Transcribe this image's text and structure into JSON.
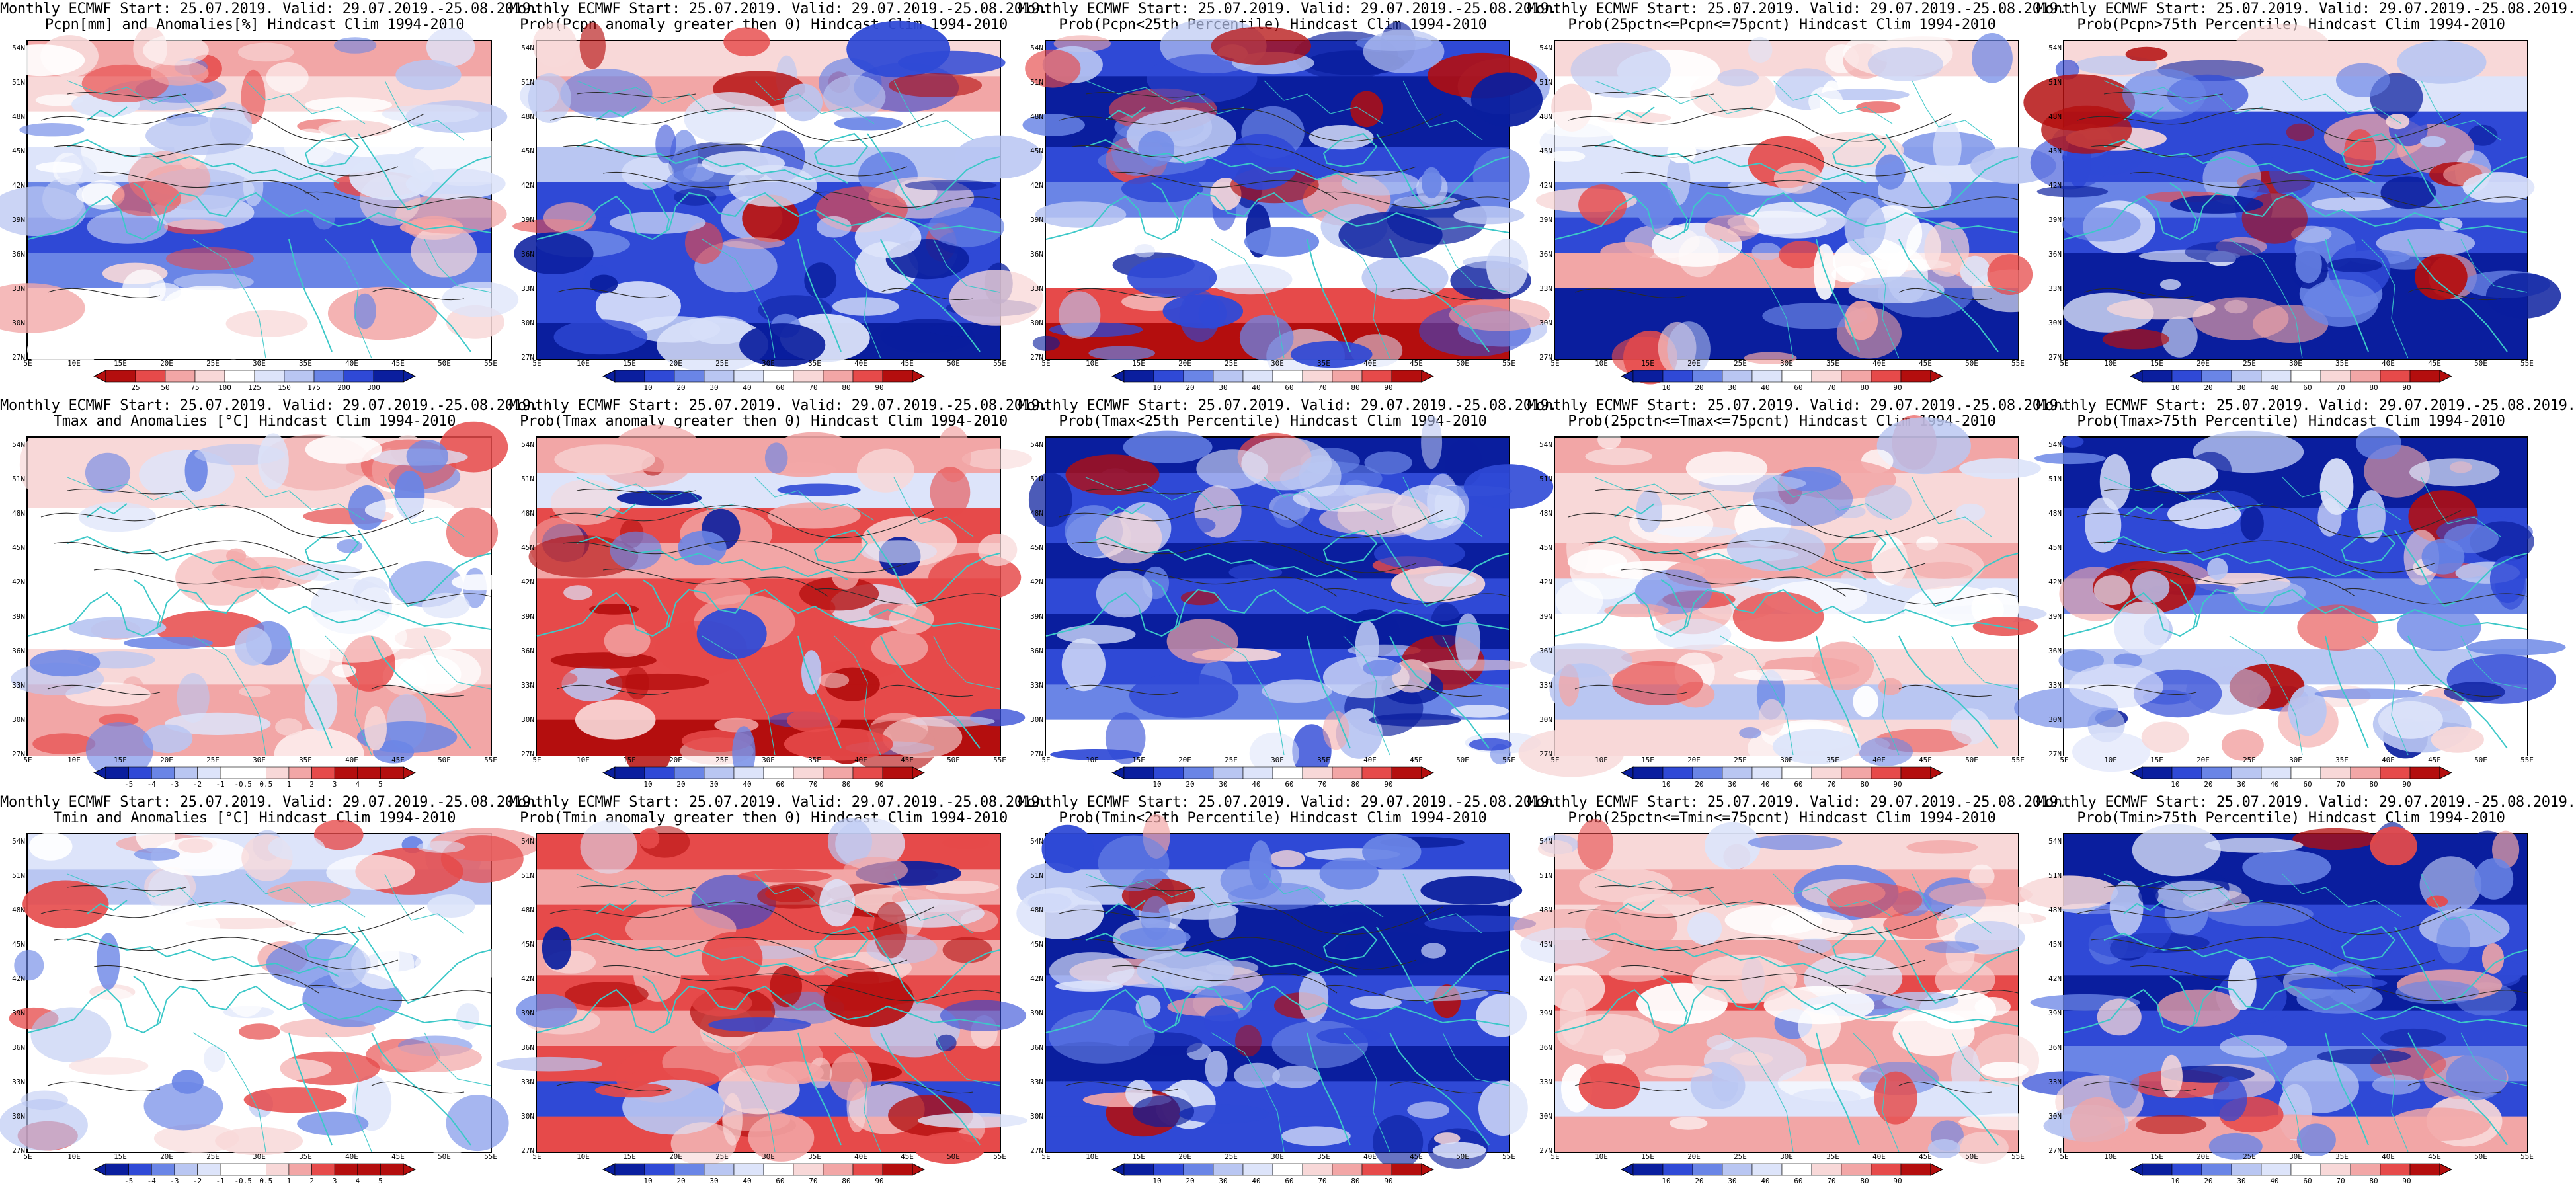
{
  "colors": {
    "deep_blue": "#0a1e9e",
    "blue": "#2f49d6",
    "mid_blue": "#6a85e6",
    "light_blue": "#b9c6f2",
    "pale_blue": "#dde4fa",
    "white": "#ffffff",
    "pale_red": "#f8d8d8",
    "light_red": "#f2a6a6",
    "red": "#e64a4a",
    "deep_red": "#b40e0e",
    "coast": "#3cc8c8",
    "contour": "#2a2a2a"
  },
  "lat_labels": [
    "54N",
    "51N",
    "48N",
    "45N",
    "42N",
    "39N",
    "36N",
    "33N",
    "30N",
    "27N"
  ],
  "lon_labels": [
    "5E",
    "10E",
    "15E",
    "20E",
    "25E",
    "30E",
    "35E",
    "40E",
    "45E",
    "50E",
    "55E"
  ],
  "scales": {
    "prcp_anom": [
      "25",
      "50",
      "75",
      "100",
      "125",
      "150",
      "175",
      "200",
      "300"
    ],
    "prob": [
      "10",
      "20",
      "30",
      "40",
      "60",
      "70",
      "80",
      "90"
    ],
    "temp_anom": [
      "-5",
      "-4",
      "-3",
      "-2",
      "-1",
      "-0.5",
      "0.5",
      "1",
      "2",
      "3",
      "4",
      "5"
    ]
  },
  "panels": [
    {
      "line1": "Monthly ECMWF Start: 25.07.2019. Valid: 29.07.2019.-25.08.2019.",
      "line2": "Pcpn[mm] and Anomalies[%] Hindcast Clim 1994-2010",
      "scale": "prcp_anom",
      "tone": "mix",
      "bands": [
        "light_red",
        "pale_red",
        "white",
        "pale_blue",
        "mid_blue",
        "blue",
        "mid_blue",
        "white",
        "white"
      ]
    },
    {
      "line1": "Monthly ECMWF Start: 25.07.2019. Valid: 29.07.2019.-25.08.2019.",
      "line2": "Prob(Pcpn anomaly greater then 0) Hindcast Clim 1994-2010",
      "scale": "prob",
      "tone": "blue",
      "bands": [
        "pale_red",
        "light_red",
        "white",
        "light_blue",
        "blue",
        "blue",
        "blue",
        "blue",
        "deep_blue"
      ]
    },
    {
      "line1": "Monthly ECMWF Start: 25.07.2019. Valid: 29.07.2019.-25.08.2019.",
      "line2": "Prob(Pcpn<25th Percentile) Hindcast Clim 1994-2010",
      "scale": "prob",
      "tone": "blue",
      "bands": [
        "blue",
        "deep_blue",
        "deep_blue",
        "blue",
        "mid_blue",
        "white",
        "white",
        "red",
        "deep_red"
      ]
    },
    {
      "line1": "Monthly ECMWF Start: 25.07.2019. Valid: 29.07.2019.-25.08.2019.",
      "line2": "Prob(25pctn<=Pcpn<=75pcnt) Hindcast Clim 1994-2010",
      "scale": "prob",
      "tone": "mix",
      "bands": [
        "pale_red",
        "white",
        "white",
        "pale_blue",
        "mid_blue",
        "blue",
        "light_red",
        "deep_blue",
        "deep_blue"
      ]
    },
    {
      "line1": "Monthly ECMWF Start: 25.07.2019. Valid: 29.07.2019.-25.08.2019.",
      "line2": "Prob(Pcpn>75th Percentile) Hindcast Clim 1994-2010",
      "scale": "prob",
      "tone": "blue",
      "bands": [
        "pale_red",
        "pale_blue",
        "blue",
        "blue",
        "mid_blue",
        "blue",
        "deep_blue",
        "deep_blue",
        "deep_blue"
      ]
    },
    {
      "line1": "Monthly ECMWF Start: 25.07.2019. Valid: 29.07.2019.-25.08.2019.",
      "line2": "Tmax and Anomalies [°C] Hindcast Clim 1994-2010",
      "scale": "temp_anom",
      "tone": "mix",
      "bands": [
        "pale_red",
        "pale_red",
        "white",
        "white",
        "white",
        "white",
        "pale_red",
        "light_red",
        "light_red"
      ]
    },
    {
      "line1": "Monthly ECMWF Start: 25.07.2019. Valid: 29.07.2019.-25.08.2019.",
      "line2": "Prob(Tmax anomaly greater then 0) Hindcast Clim 1994-2010",
      "scale": "prob",
      "tone": "red",
      "bands": [
        "light_red",
        "pale_blue",
        "red",
        "light_red",
        "red",
        "red",
        "red",
        "red",
        "deep_red"
      ]
    },
    {
      "line1": "Monthly ECMWF Start: 25.07.2019. Valid: 29.07.2019.-25.08.2019.",
      "line2": "Prob(Tmax<25th Percentile) Hindcast Clim 1994-2010",
      "scale": "prob",
      "tone": "blue",
      "bands": [
        "deep_blue",
        "blue",
        "blue",
        "deep_blue",
        "blue",
        "deep_blue",
        "blue",
        "mid_blue",
        "white"
      ]
    },
    {
      "line1": "Monthly ECMWF Start: 25.07.2019. Valid: 29.07.2019.-25.08.2019.",
      "line2": "Prob(25pctn<=Tmax<=75pcnt) Hindcast Clim 1994-2010",
      "scale": "prob",
      "tone": "mix",
      "bands": [
        "light_red",
        "pale_red",
        "pale_red",
        "light_red",
        "pale_blue",
        "white",
        "pale_red",
        "light_blue",
        "pale_red"
      ]
    },
    {
      "line1": "Monthly ECMWF Start: 25.07.2019. Valid: 29.07.2019.-25.08.2019.",
      "line2": "Prob(Tmax>75th Percentile) Hindcast Clim 1994-2010",
      "scale": "prob",
      "tone": "blue",
      "bands": [
        "deep_blue",
        "deep_blue",
        "blue",
        "blue",
        "mid_blue",
        "white",
        "light_blue",
        "white",
        "white"
      ]
    },
    {
      "line1": "Monthly ECMWF Start: 25.07.2019. Valid: 29.07.2019.-25.08.2019.",
      "line2": "Tmin and Anomalies [°C] Hindcast Clim 1994-2010",
      "scale": "temp_anom",
      "tone": "mix",
      "bands": [
        "pale_blue",
        "light_blue",
        "white",
        "white",
        "white",
        "white",
        "white",
        "white",
        "white"
      ]
    },
    {
      "line1": "Monthly ECMWF Start: 25.07.2019. Valid: 29.07.2019.-25.08.2019.",
      "line2": "Prob(Tmin anomaly greater then 0) Hindcast Clim 1994-2010",
      "scale": "prob",
      "tone": "red",
      "bands": [
        "red",
        "light_red",
        "red",
        "light_red",
        "red",
        "light_red",
        "red",
        "blue",
        "red"
      ]
    },
    {
      "line1": "Monthly ECMWF Start: 25.07.2019. Valid: 29.07.2019.-25.08.2019.",
      "line2": "Prob(Tmin<25th Percentile) Hindcast Clim 1994-2010",
      "scale": "prob",
      "tone": "blue",
      "bands": [
        "blue",
        "light_blue",
        "deep_blue",
        "deep_blue",
        "blue",
        "blue",
        "deep_blue",
        "blue",
        "blue"
      ]
    },
    {
      "line1": "Monthly ECMWF Start: 25.07.2019. Valid: 29.07.2019.-25.08.2019.",
      "line2": "Prob(25pctn<=Tmin<=75pcnt) Hindcast Clim 1994-2010",
      "scale": "prob",
      "tone": "mix",
      "bands": [
        "pale_red",
        "light_red",
        "pale_red",
        "light_red",
        "red",
        "light_red",
        "light_red",
        "pale_blue",
        "light_red"
      ]
    },
    {
      "line1": "Monthly ECMWF Start: 25.07.2019. Valid: 29.07.2019.-25.08.2019.",
      "line2": "Prob(Tmin>75th Percentile) Hindcast Clim 1994-2010",
      "scale": "prob",
      "tone": "blue",
      "bands": [
        "deep_blue",
        "deep_blue",
        "blue",
        "blue",
        "deep_blue",
        "blue",
        "mid_blue",
        "blue",
        "light_red"
      ]
    }
  ]
}
